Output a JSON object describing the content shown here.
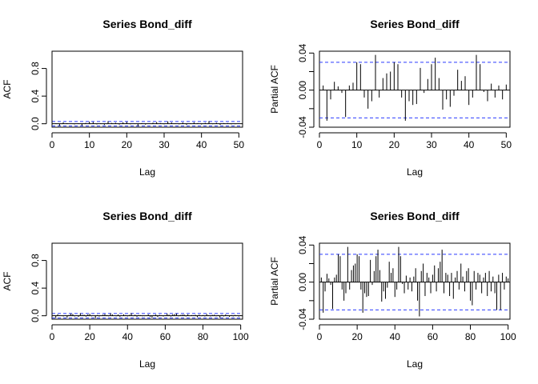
{
  "chart_data": [
    {
      "type": "bar",
      "title": "Series  Bond_diff",
      "xlabel": "Lag",
      "ylabel": "ACF",
      "xlim": [
        0,
        51
      ],
      "ylim": [
        -0.05,
        1.05
      ],
      "xticks": [
        0,
        10,
        20,
        30,
        40,
        50
      ],
      "xtick_labels": [
        "0",
        "10",
        "20",
        "30",
        "40",
        "50"
      ],
      "yticks": [
        0.0,
        0.4,
        0.8
      ],
      "ytick_labels": [
        "0.0",
        "0.4",
        "0.8"
      ],
      "zero_line": true,
      "confidence_bound": 0.032,
      "bound_color": "#2b3bff",
      "lags": [
        0,
        1,
        2,
        3,
        4,
        5,
        6,
        7,
        8,
        9,
        10,
        11,
        12,
        13,
        14,
        15,
        16,
        17,
        18,
        19,
        20,
        21,
        22,
        23,
        24,
        25,
        26,
        27,
        28,
        29,
        30,
        31,
        32,
        33,
        34,
        35,
        36,
        37,
        38,
        39,
        40,
        41,
        42,
        43,
        44,
        45,
        46,
        47,
        48,
        49,
        50
      ],
      "values": [
        1.0,
        0.005,
        -0.033,
        0.02,
        0.008,
        -0.003,
        -0.01,
        0.005,
        -0.028,
        0.012,
        0.03,
        0.025,
        -0.01,
        0.005,
        -0.018,
        0.037,
        0.012,
        0.015,
        -0.013,
        0.02,
        0.028,
        -0.008,
        -0.003,
        -0.035,
        0.01,
        -0.012,
        0.005,
        0.015,
        0.025,
        0.01,
        -0.008,
        0.035,
        0.018,
        0.005,
        -0.008,
        0.018,
        -0.015,
        0.006,
        0.02,
        0.01,
        -0.01,
        0.013,
        0.038,
        -0.006,
        0.015,
        -0.016,
        0.01,
        0.01,
        -0.008,
        -0.006,
        0.005
      ]
    },
    {
      "type": "bar",
      "title": "Series  Bond_diff",
      "xlabel": "Lag",
      "ylabel": "Partial ACF",
      "xlim": [
        0,
        51
      ],
      "ylim": [
        -0.04,
        0.042
      ],
      "xticks": [
        0,
        10,
        20,
        30,
        40,
        50
      ],
      "xtick_labels": [
        "0",
        "10",
        "20",
        "30",
        "40",
        "50"
      ],
      "yticks": [
        -0.04,
        0.0,
        0.04
      ],
      "ytick_labels": [
        "-0.04",
        "0.00",
        "0.04"
      ],
      "minor_yticks": [
        -0.02,
        0.02
      ],
      "zero_line": true,
      "confidence_bound": 0.03,
      "bound_color": "#2b3bff",
      "lags": [
        1,
        2,
        3,
        4,
        5,
        6,
        7,
        8,
        9,
        10,
        11,
        12,
        13,
        14,
        15,
        16,
        17,
        18,
        19,
        20,
        21,
        22,
        23,
        24,
        25,
        26,
        27,
        28,
        29,
        30,
        31,
        32,
        33,
        34,
        35,
        36,
        37,
        38,
        39,
        40,
        41,
        42,
        43,
        44,
        45,
        46,
        47,
        48,
        49,
        50
      ],
      "values": [
        0.005,
        -0.033,
        -0.01,
        0.009,
        0.004,
        -0.003,
        -0.029,
        0.005,
        0.008,
        0.03,
        0.028,
        -0.008,
        -0.02,
        -0.012,
        0.038,
        -0.008,
        0.013,
        0.018,
        0.02,
        0.03,
        0.028,
        -0.008,
        -0.033,
        -0.012,
        -0.016,
        -0.015,
        0.024,
        -0.003,
        0.012,
        0.028,
        0.035,
        0.013,
        -0.021,
        -0.01,
        -0.018,
        -0.006,
        0.022,
        0.01,
        0.015,
        -0.016,
        -0.008,
        0.038,
        0.028,
        -0.002,
        -0.012,
        0.007,
        -0.008,
        0.005,
        -0.01,
        0.006
      ]
    },
    {
      "type": "bar",
      "title": "Series  Bond_diff",
      "xlabel": "Lag",
      "ylabel": "ACF",
      "xlim": [
        0,
        101
      ],
      "ylim": [
        -0.05,
        1.05
      ],
      "xticks": [
        0,
        20,
        40,
        60,
        80,
        100
      ],
      "xtick_labels": [
        "0",
        "20",
        "40",
        "60",
        "80",
        "100"
      ],
      "yticks": [
        0.0,
        0.4,
        0.8
      ],
      "ytick_labels": [
        "0.0",
        "0.4",
        "0.8"
      ],
      "zero_line": true,
      "confidence_bound": 0.032,
      "bound_color": "#2b3bff",
      "lags": [
        0,
        1,
        2,
        3,
        4,
        5,
        6,
        7,
        8,
        9,
        10,
        11,
        12,
        13,
        14,
        15,
        16,
        17,
        18,
        19,
        20,
        21,
        22,
        23,
        24,
        25,
        26,
        27,
        28,
        29,
        30,
        31,
        32,
        33,
        34,
        35,
        36,
        37,
        38,
        39,
        40,
        41,
        42,
        43,
        44,
        45,
        46,
        47,
        48,
        49,
        50,
        51,
        52,
        53,
        54,
        55,
        56,
        57,
        58,
        59,
        60,
        61,
        62,
        63,
        64,
        65,
        66,
        67,
        68,
        69,
        70,
        71,
        72,
        73,
        74,
        75,
        76,
        77,
        78,
        79,
        80,
        81,
        82,
        83,
        84,
        85,
        86,
        87,
        88,
        89,
        90,
        91,
        92,
        93,
        94,
        95,
        96,
        97,
        98,
        99,
        100
      ],
      "values": [
        1.0,
        0.005,
        -0.033,
        0.02,
        0.008,
        -0.003,
        -0.01,
        0.005,
        -0.028,
        0.012,
        0.03,
        0.025,
        -0.01,
        0.005,
        -0.018,
        0.037,
        0.012,
        0.015,
        -0.013,
        0.02,
        0.028,
        -0.008,
        -0.003,
        -0.035,
        0.01,
        -0.012,
        0.005,
        0.015,
        0.025,
        0.01,
        -0.008,
        0.035,
        0.018,
        0.005,
        -0.008,
        0.018,
        -0.015,
        0.006,
        0.02,
        0.01,
        -0.01,
        0.013,
        0.038,
        -0.006,
        0.015,
        -0.016,
        0.01,
        0.01,
        -0.008,
        -0.006,
        0.005,
        0.02,
        -0.015,
        -0.03,
        0.01,
        0.018,
        -0.02,
        0.012,
        0.005,
        -0.01,
        0.008,
        0.03,
        0.015,
        -0.012,
        0.02,
        0.025,
        0.032,
        -0.008,
        0.012,
        0.015,
        0.018,
        -0.01,
        0.02,
        -0.005,
        0.01,
        0.008,
        0.013,
        -0.022,
        0.015,
        -0.006,
        0.01,
        -0.01,
        0.025,
        0.008,
        -0.01,
        0.012,
        0.015,
        -0.008,
        0.01,
        -0.028,
        0.012,
        -0.01,
        0.018,
        0.008,
        -0.015,
        0.01,
        -0.01,
        0.012,
        0.005,
        -0.012,
        0.008
      ]
    },
    {
      "type": "bar",
      "title": "Series  Bond_diff",
      "xlabel": "Lag",
      "ylabel": "Partial ACF",
      "xlim": [
        0,
        101
      ],
      "ylim": [
        -0.04,
        0.042
      ],
      "xticks": [
        0,
        20,
        40,
        60,
        80,
        100
      ],
      "xtick_labels": [
        "0",
        "20",
        "40",
        "60",
        "80",
        "100"
      ],
      "yticks": [
        -0.04,
        0.0,
        0.04
      ],
      "ytick_labels": [
        "-0.04",
        "0.00",
        "0.04"
      ],
      "minor_yticks": [
        -0.02,
        0.02
      ],
      "zero_line": true,
      "confidence_bound": 0.03,
      "bound_color": "#2b3bff",
      "lags": [
        1,
        2,
        3,
        4,
        5,
        6,
        7,
        8,
        9,
        10,
        11,
        12,
        13,
        14,
        15,
        16,
        17,
        18,
        19,
        20,
        21,
        22,
        23,
        24,
        25,
        26,
        27,
        28,
        29,
        30,
        31,
        32,
        33,
        34,
        35,
        36,
        37,
        38,
        39,
        40,
        41,
        42,
        43,
        44,
        45,
        46,
        47,
        48,
        49,
        50,
        51,
        52,
        53,
        54,
        55,
        56,
        57,
        58,
        59,
        60,
        61,
        62,
        63,
        64,
        65,
        66,
        67,
        68,
        69,
        70,
        71,
        72,
        73,
        74,
        75,
        76,
        77,
        78,
        79,
        80,
        81,
        82,
        83,
        84,
        85,
        86,
        87,
        88,
        89,
        90,
        91,
        92,
        93,
        94,
        95,
        96,
        97,
        98,
        99,
        100
      ],
      "values": [
        0.005,
        -0.033,
        -0.01,
        0.009,
        0.004,
        -0.003,
        -0.029,
        0.005,
        0.008,
        0.03,
        0.028,
        -0.008,
        -0.02,
        -0.012,
        0.038,
        -0.008,
        0.013,
        0.018,
        0.02,
        0.03,
        0.028,
        -0.008,
        -0.033,
        -0.012,
        -0.016,
        -0.015,
        0.024,
        -0.003,
        0.012,
        0.028,
        0.035,
        0.013,
        -0.021,
        -0.01,
        -0.018,
        -0.006,
        0.022,
        0.01,
        0.015,
        -0.016,
        -0.008,
        0.038,
        0.028,
        -0.002,
        -0.012,
        0.007,
        -0.008,
        0.005,
        -0.01,
        0.006,
        0.015,
        -0.02,
        -0.037,
        0.012,
        0.02,
        -0.015,
        0.01,
        0.005,
        -0.012,
        0.008,
        0.018,
        -0.01,
        0.015,
        0.022,
        0.035,
        -0.012,
        0.01,
        0.008,
        -0.015,
        0.01,
        -0.018,
        0.005,
        0.012,
        -0.008,
        0.02,
        0.006,
        -0.01,
        0.012,
        0.015,
        -0.02,
        -0.025,
        0.012,
        -0.008,
        0.01,
        0.008,
        -0.012,
        0.005,
        0.01,
        -0.015,
        0.012,
        -0.01,
        0.006,
        -0.012,
        -0.03,
        0.008,
        -0.03,
        0.01,
        -0.008,
        0.006,
        0.004
      ]
    }
  ]
}
